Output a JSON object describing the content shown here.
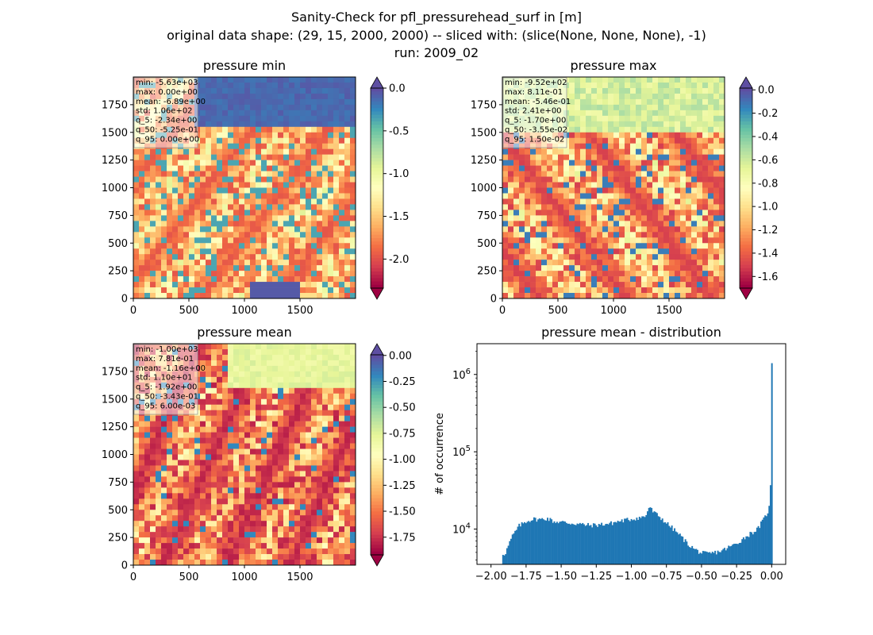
{
  "figure": {
    "title_lines": [
      "Sanity-Check for pfl_pressurehead_surf in [m]",
      "original data shape: (29, 15, 2000, 2000) -- sliced with: (slice(None, None, None), -1)",
      "run: 2009_02"
    ]
  },
  "chart_data": [
    {
      "type": "heatmap",
      "title": "pressure min",
      "xlim": [
        0,
        2000
      ],
      "ylim": [
        0,
        2000
      ],
      "xticks": [
        0,
        500,
        1000,
        1500
      ],
      "yticks": [
        0,
        250,
        500,
        750,
        1000,
        1250,
        1500,
        1750
      ],
      "colormap": "Spectral",
      "colorbar": {
        "range": [
          -2.34,
          0.0
        ],
        "ticks": [
          "0.0",
          "-0.5",
          "-1.0",
          "-1.5",
          "-2.0"
        ],
        "tick_values": [
          0.0,
          -0.5,
          -1.0,
          -1.5,
          -2.0
        ],
        "extend": "both"
      },
      "stats": [
        "min: -5.63e+03",
        "max: 0.00e+00",
        "mean: -6.89e+00",
        "std: 1.06e+02",
        "q_5: -2.34e+00",
        "q_50: -5.25e-01",
        "q_95: 0.00e+00"
      ]
    },
    {
      "type": "heatmap",
      "title": "pressure max",
      "xlim": [
        0,
        2000
      ],
      "ylim": [
        0,
        2000
      ],
      "xticks": [
        0,
        500,
        1000,
        1500
      ],
      "yticks": [
        0,
        250,
        500,
        750,
        1000,
        1250,
        1500,
        1750
      ],
      "colormap": "Spectral",
      "colorbar": {
        "range": [
          -1.7,
          0.015
        ],
        "ticks": [
          "0.0",
          "-0.2",
          "-0.4",
          "-0.6",
          "-0.8",
          "-1.0",
          "-1.2",
          "-1.4",
          "-1.6"
        ],
        "tick_values": [
          0.0,
          -0.2,
          -0.4,
          -0.6,
          -0.8,
          -1.0,
          -1.2,
          -1.4,
          -1.6
        ],
        "extend": "both"
      },
      "stats": [
        "min: -9.52e+02",
        "max: 8.11e-01",
        "mean: -5.46e-01",
        "std: 2.41e+00",
        "q_5: -1.70e+00",
        "q_50: -3.55e-02",
        "q_95: 1.50e-02"
      ]
    },
    {
      "type": "heatmap",
      "title": "pressure mean",
      "xlim": [
        0,
        2000
      ],
      "ylim": [
        0,
        2000
      ],
      "xticks": [
        0,
        500,
        1000,
        1500
      ],
      "yticks": [
        0,
        250,
        500,
        750,
        1000,
        1250,
        1500,
        1750
      ],
      "colormap": "Spectral",
      "colorbar": {
        "range": [
          -1.92,
          0.006
        ],
        "ticks": [
          "0.00",
          "-0.25",
          "-0.50",
          "-0.75",
          "-1.00",
          "-1.25",
          "-1.50",
          "-1.75"
        ],
        "tick_values": [
          0.0,
          -0.25,
          -0.5,
          -0.75,
          -1.0,
          -1.25,
          -1.5,
          -1.75
        ],
        "extend": "both"
      },
      "stats": [
        "min: -1.00e+03",
        "max: 7.81e-01",
        "mean: -1.16e+00",
        "std: 1.10e+01",
        "q_5: -1.92e+00",
        "q_50: -3.43e-01",
        "q_95: 6.00e-03"
      ]
    },
    {
      "type": "bar",
      "subtype": "histogram",
      "title": "pressure mean - distribution",
      "ylabel": "# of occurrence",
      "yscale": "log",
      "xlim": [
        -2.1,
        0.1
      ],
      "ylim": [
        3500,
        2500000
      ],
      "xticks": [
        -2.0,
        -1.75,
        -1.5,
        -1.25,
        -1.0,
        -0.75,
        -0.5,
        -0.25,
        0.0
      ],
      "xtick_labels": [
        "−2.00",
        "−1.75",
        "−1.50",
        "−1.25",
        "−1.00",
        "−0.75",
        "−0.50",
        "−0.25",
        "0.00"
      ],
      "yticks": [
        10000,
        100000,
        1000000
      ],
      "color": "#1f77b4",
      "bin_range": [
        -1.92,
        0.006
      ],
      "x": [
        -1.9,
        -1.85,
        -1.8,
        -1.75,
        -1.7,
        -1.65,
        -1.6,
        -1.55,
        -1.5,
        -1.45,
        -1.4,
        -1.35,
        -1.3,
        -1.25,
        -1.2,
        -1.15,
        -1.1,
        -1.05,
        -1.0,
        -0.95,
        -0.9,
        -0.87,
        -0.85,
        -0.8,
        -0.75,
        -0.7,
        -0.65,
        -0.6,
        -0.55,
        -0.5,
        -0.45,
        -0.4,
        -0.35,
        -0.3,
        -0.25,
        -0.2,
        -0.15,
        -0.1,
        -0.05,
        -0.02,
        0.0
      ],
      "y": [
        4800,
        8000,
        11000,
        12600,
        13500,
        13300,
        13800,
        12500,
        12400,
        12000,
        11800,
        11500,
        11200,
        11300,
        11600,
        11800,
        12500,
        13000,
        13500,
        14000,
        14500,
        20000,
        17000,
        14500,
        12000,
        10000,
        8200,
        6500,
        5500,
        4900,
        4800,
        5000,
        5300,
        5900,
        6500,
        7600,
        8800,
        10000,
        14000,
        18000,
        1400000
      ]
    }
  ]
}
